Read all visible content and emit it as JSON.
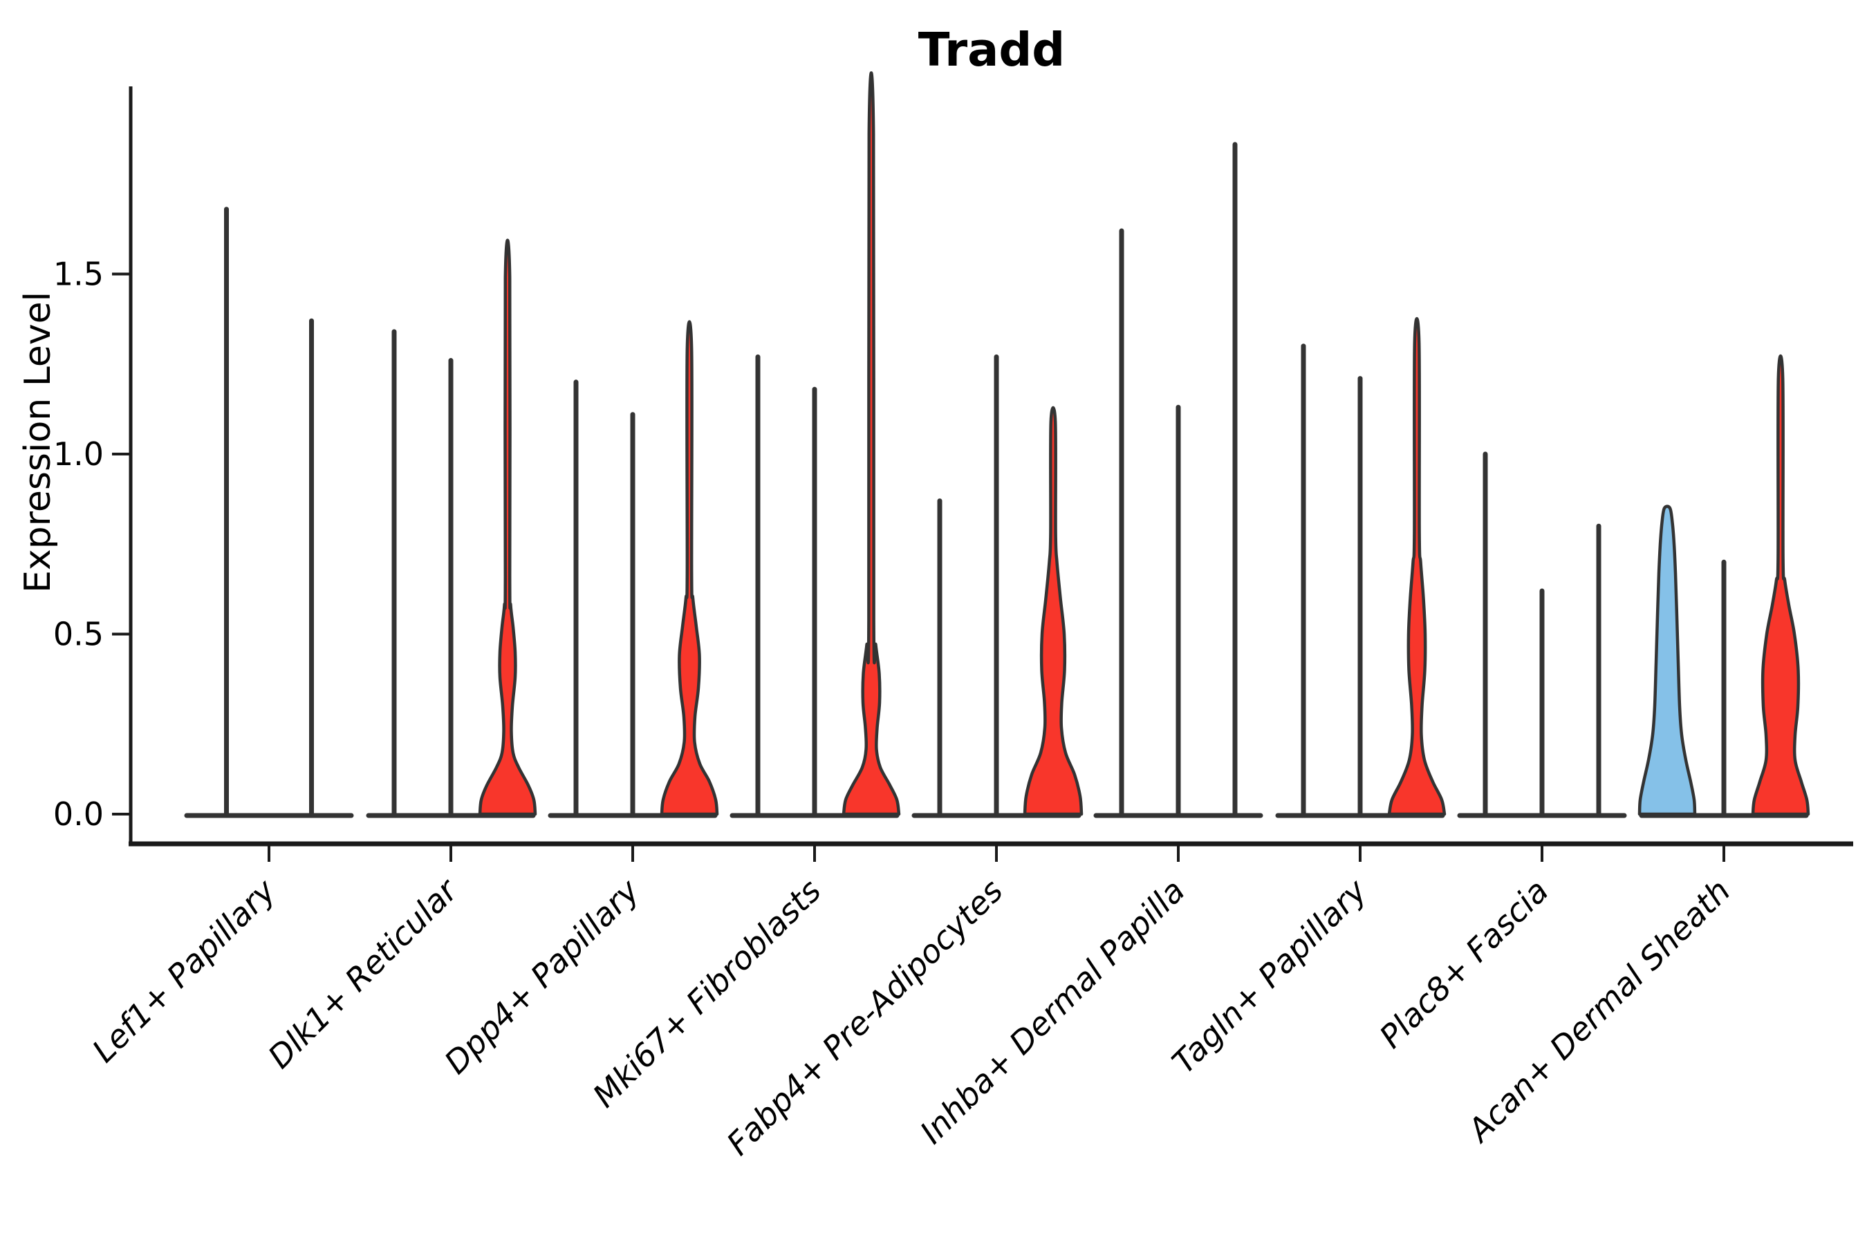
{
  "chart_data": {
    "type": "violin",
    "title": "Tradd",
    "ylabel": "Expression Level",
    "xlabel": "",
    "y_ticks": [
      "0.0",
      "0.5",
      "1.0",
      "1.5"
    ],
    "y_tick_values": [
      0.0,
      0.5,
      1.0,
      1.5
    ],
    "ylim": [
      -0.08,
      2.02
    ],
    "x_tick_rotation": 45,
    "grid": false,
    "legend": "none",
    "categories": [
      "Lef1+ Papillary",
      "Dlk1+ Reticular",
      "Dpp4+ Papillary",
      "Mki67+ Fibroblasts",
      "Fabp4+ Pre-Adipocytes",
      "Inhba+ Dermal Papilla",
      "Tagln+ Papillary",
      "Plac8+ Fascia",
      "Acan+ Dermal Sheath"
    ],
    "colors": {
      "red": "#F8362B",
      "blue": "#85C1E8",
      "outline": "#333333",
      "axis": "#1A1A1A",
      "text": "#000000"
    },
    "groups": [
      {
        "category": "Lef1+ Papillary",
        "violins": [
          {
            "fill": "none",
            "max": 1.68
          },
          {
            "fill": "none",
            "max": 1.37
          }
        ]
      },
      {
        "category": "Dlk1+ Reticular",
        "violins": [
          {
            "fill": "none",
            "max": 1.34
          },
          {
            "fill": "none",
            "max": 1.26
          },
          {
            "fill": "red",
            "max": 1.49,
            "profile": [
              [
                0,
                40
              ],
              [
                0.04,
                38
              ],
              [
                0.08,
                30
              ],
              [
                0.13,
                16
              ],
              [
                0.17,
                8
              ],
              [
                0.23,
                5.5
              ],
              [
                0.3,
                7
              ],
              [
                0.38,
                11
              ],
              [
                0.45,
                11
              ],
              [
                0.52,
                8
              ],
              [
                0.58,
                4.5
              ],
              [
                0.66,
                3.2
              ],
              [
                1.49,
                3.2
              ]
            ]
          }
        ]
      },
      {
        "category": "Dpp4+ Papillary",
        "violins": [
          {
            "fill": "none",
            "max": 1.2
          },
          {
            "fill": "none",
            "max": 1.11
          },
          {
            "fill": "red",
            "max": 1.29,
            "profile": [
              [
                0,
                40
              ],
              [
                0.04,
                38
              ],
              [
                0.09,
                29
              ],
              [
                0.14,
                15
              ],
              [
                0.2,
                7.5
              ],
              [
                0.27,
                8
              ],
              [
                0.35,
                13
              ],
              [
                0.44,
                14.5
              ],
              [
                0.52,
                10
              ],
              [
                0.6,
                5
              ],
              [
                0.67,
                3.2
              ],
              [
                1.29,
                3.2
              ]
            ]
          }
        ]
      },
      {
        "category": "Mki67+ Fibroblasts",
        "violins": [
          {
            "fill": "none",
            "max": 1.27
          },
          {
            "fill": "none",
            "max": 1.18
          },
          {
            "fill": "red",
            "max": 1.89,
            "profile": [
              [
                0,
                40
              ],
              [
                0.04,
                37
              ],
              [
                0.08,
                27
              ],
              [
                0.13,
                13
              ],
              [
                0.18,
                7.5
              ],
              [
                0.24,
                8.5
              ],
              [
                0.31,
                12
              ],
              [
                0.39,
                11.5
              ],
              [
                0.47,
                6.5
              ],
              [
                0.54,
                3.6
              ],
              [
                1.89,
                3.2
              ]
            ]
          }
        ]
      },
      {
        "category": "Fabp4+ Pre-Adipocytes",
        "violins": [
          {
            "fill": "none",
            "max": 0.87
          },
          {
            "fill": "none",
            "max": 1.27
          },
          {
            "fill": "red",
            "max": 1.09,
            "profile": [
              [
                0,
                41
              ],
              [
                0.05,
                39
              ],
              [
                0.11,
                31
              ],
              [
                0.17,
                18
              ],
              [
                0.24,
                12
              ],
              [
                0.31,
                12.5
              ],
              [
                0.4,
                16.5
              ],
              [
                0.5,
                16
              ],
              [
                0.6,
                10.5
              ],
              [
                0.7,
                5.5
              ],
              [
                0.78,
                3.6
              ],
              [
                1.09,
                3.2
              ]
            ]
          }
        ]
      },
      {
        "category": "Inhba+ Dermal Papilla",
        "violins": [
          {
            "fill": "none",
            "max": 1.62
          },
          {
            "fill": "none",
            "max": 1.13
          },
          {
            "fill": "none",
            "max": 1.86
          }
        ]
      },
      {
        "category": "Tagln+ Papillary",
        "violins": [
          {
            "fill": "none",
            "max": 1.3
          },
          {
            "fill": "none",
            "max": 1.21
          },
          {
            "fill": "red",
            "max": 1.31,
            "profile": [
              [
                0,
                40
              ],
              [
                0.04,
                36
              ],
              [
                0.09,
                23
              ],
              [
                0.15,
                11
              ],
              [
                0.22,
                6.5
              ],
              [
                0.3,
                7.5
              ],
              [
                0.4,
                11.5
              ],
              [
                0.5,
                12
              ],
              [
                0.6,
                9.5
              ],
              [
                0.7,
                5.5
              ],
              [
                0.78,
                3.6
              ],
              [
                1.31,
                3.2
              ]
            ]
          }
        ]
      },
      {
        "category": "Plac8+ Fascia",
        "violins": [
          {
            "fill": "none",
            "max": 1.0
          },
          {
            "fill": "none",
            "max": 0.62
          },
          {
            "fill": "none",
            "max": 0.8
          }
        ]
      },
      {
        "category": "Acan+ Dermal Sheath",
        "violins": [
          {
            "fill": "blue",
            "max": 0.85,
            "profile": [
              [
                0,
                40
              ],
              [
                0.04,
                39
              ],
              [
                0.09,
                34
              ],
              [
                0.15,
                27
              ],
              [
                0.22,
                21
              ],
              [
                0.3,
                18
              ],
              [
                0.42,
                16
              ],
              [
                0.55,
                14
              ],
              [
                0.67,
                12
              ],
              [
                0.75,
                10
              ],
              [
                0.81,
                7.5
              ],
              [
                0.85,
                4
              ]
            ]
          },
          {
            "fill": "none",
            "max": 0.7
          },
          {
            "fill": "red",
            "max": 1.21,
            "profile": [
              [
                0,
                40
              ],
              [
                0.04,
                38
              ],
              [
                0.09,
                30
              ],
              [
                0.15,
                21
              ],
              [
                0.22,
                21
              ],
              [
                0.3,
                25
              ],
              [
                0.4,
                25.5
              ],
              [
                0.5,
                20
              ],
              [
                0.58,
                12
              ],
              [
                0.65,
                6
              ],
              [
                0.71,
                3.6
              ],
              [
                1.21,
                3.2
              ]
            ]
          }
        ]
      }
    ]
  }
}
